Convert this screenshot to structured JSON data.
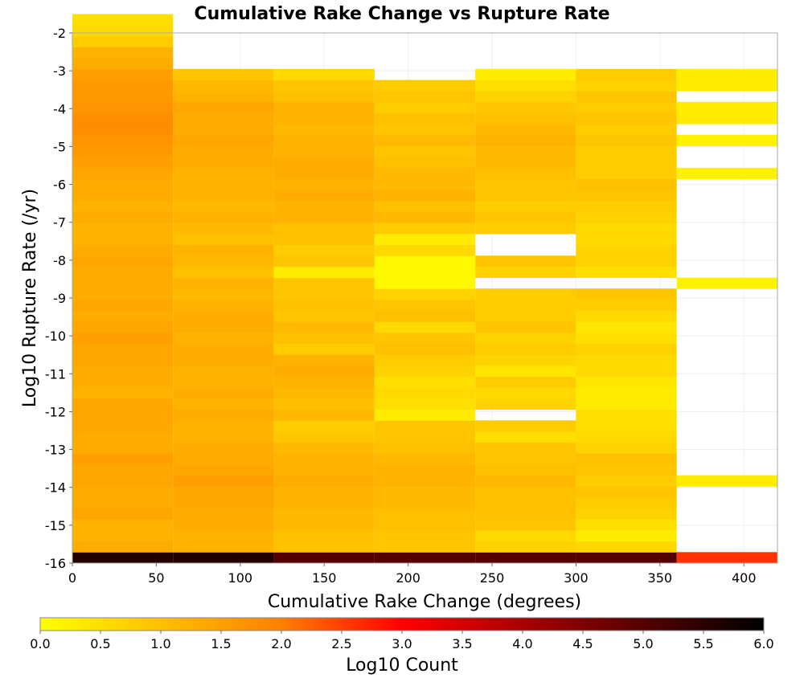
{
  "chart_data": {
    "type": "heatmap",
    "title": "Cumulative Rake Change vs Rupture Rate",
    "xlabel": "Cumulative Rake Change (degrees)",
    "ylabel": "Log10 Rupture Rate (/yr)",
    "xlim": [
      0,
      420
    ],
    "ylim": [
      -16,
      -2
    ],
    "x_ticks": [
      "0",
      "50",
      "100",
      "150",
      "200",
      "250",
      "300",
      "350",
      "400"
    ],
    "y_ticks": [
      "-2",
      "-3",
      "-4",
      "-5",
      "-6",
      "-7",
      "-8",
      "-9",
      "-10",
      "-11",
      "-12",
      "-13",
      "-14",
      "-15",
      "-16"
    ],
    "grid": true,
    "x_bin_edges": [
      0,
      60,
      120,
      180,
      240,
      300,
      360,
      420
    ],
    "y_bin_width": 0.29,
    "y_bin_start": -16,
    "z_label": "Log10 Count",
    "z_range": [
      0,
      6
    ],
    "colorbar": {
      "label": "Log10 Count",
      "ticks": [
        "0.0",
        "0.5",
        "1.0",
        "1.5",
        "2.0",
        "2.5",
        "3.0",
        "3.5",
        "4.0",
        "4.5",
        "5.0",
        "5.5",
        "6.0"
      ],
      "colors": [
        "#ffff00",
        "#ff8000",
        "#ff0000",
        "#000000"
      ],
      "placement": "bottom"
    },
    "columns": [
      {
        "x_start": 0,
        "x_end": 60,
        "values": [
          5.6,
          1.3,
          1.2,
          1.2,
          1.4,
          1.3,
          1.3,
          1.4,
          1.4,
          1.5,
          1.3,
          1.3,
          1.4,
          1.4,
          1.4,
          1.2,
          1.3,
          1.3,
          1.4,
          1.4,
          1.5,
          1.4,
          1.3,
          1.4,
          1.3,
          1.3,
          1.3,
          1.4,
          1.3,
          1.2,
          1.2,
          1.3,
          1.2,
          1.3,
          1.3,
          1.4,
          1.5,
          1.6,
          1.7,
          1.8,
          1.8,
          1.7,
          1.6,
          1.6,
          1.5,
          1.3,
          1.2,
          0.8,
          0.6,
          0.5,
          null
        ]
      },
      {
        "x_start": 60,
        "x_end": 120,
        "values": [
          5.6,
          1.2,
          1.2,
          1.3,
          1.3,
          1.4,
          1.4,
          1.5,
          1.4,
          1.3,
          1.3,
          1.2,
          1.2,
          1.3,
          1.2,
          1.3,
          1.2,
          1.2,
          1.3,
          1.3,
          1.2,
          1.3,
          1.3,
          1.2,
          1.1,
          1.2,
          1.0,
          1.1,
          1.2,
          1.0,
          1.1,
          1.2,
          1.1,
          1.2,
          1.2,
          1.2,
          1.3,
          1.3,
          1.4,
          1.3,
          1.3,
          1.4,
          1.2,
          1.1,
          0.9,
          null,
          null,
          null,
          null,
          null,
          null
        ]
      },
      {
        "x_start": 120,
        "x_end": 180,
        "values": [
          5.0,
          1.0,
          1.0,
          1.1,
          1.1,
          1.2,
          1.2,
          1.3,
          1.2,
          1.2,
          1.1,
          0.9,
          0.8,
          1.1,
          1.0,
          1.1,
          1.2,
          1.3,
          1.2,
          0.8,
          1.0,
          1.1,
          0.9,
          1.0,
          0.9,
          0.9,
          0.3,
          0.9,
          0.8,
          1.0,
          1.0,
          1.2,
          1.2,
          1.3,
          1.2,
          1.3,
          1.3,
          1.2,
          1.2,
          1.1,
          1.2,
          1.2,
          1.0,
          0.9,
          0.6,
          null,
          null,
          null,
          null,
          null,
          null
        ]
      },
      {
        "x_start": 180,
        "x_end": 240,
        "values": [
          5.0,
          0.9,
          0.9,
          1.0,
          1.0,
          1.1,
          1.1,
          1.2,
          1.2,
          1.1,
          1.0,
          0.9,
          0.9,
          0.3,
          0.5,
          0.6,
          0.5,
          0.7,
          0.8,
          1.0,
          0.9,
          0.6,
          1.0,
          0.9,
          0.7,
          0.1,
          0.1,
          0.1,
          0.6,
          0.3,
          0.8,
          1.1,
          1.0,
          1.2,
          1.1,
          1.1,
          1.0,
          0.9,
          1.1,
          0.9,
          1.0,
          0.8,
          0.9,
          0.8,
          null,
          null,
          null,
          null,
          null,
          null,
          null
        ]
      },
      {
        "x_start": 240,
        "x_end": 300,
        "values": [
          5.0,
          0.7,
          0.6,
          0.9,
          1.0,
          1.0,
          1.0,
          1.1,
          1.0,
          0.9,
          0.9,
          0.5,
          0.8,
          null,
          0.7,
          0.6,
          0.8,
          0.4,
          0.7,
          0.8,
          0.7,
          0.9,
          0.8,
          0.8,
          0.8,
          null,
          0.7,
          0.9,
          null,
          null,
          0.8,
          0.9,
          0.8,
          0.9,
          0.9,
          1.0,
          1.1,
          1.1,
          1.2,
          1.1,
          1.0,
          0.9,
          0.7,
          0.5,
          0.3,
          null,
          null,
          null,
          null,
          null,
          null
        ]
      },
      {
        "x_start": 300,
        "x_end": 360,
        "values": [
          5.0,
          0.6,
          0.3,
          0.5,
          0.7,
          0.8,
          0.9,
          0.8,
          0.9,
          1.0,
          0.7,
          0.6,
          0.5,
          0.5,
          0.3,
          0.3,
          0.4,
          0.6,
          0.6,
          0.7,
          0.5,
          0.4,
          0.6,
          0.8,
          0.9,
          null,
          0.5,
          0.7,
          0.7,
          0.6,
          0.6,
          0.7,
          0.8,
          0.9,
          1.0,
          0.8,
          0.8,
          0.8,
          0.9,
          0.8,
          0.9,
          0.8,
          0.9,
          0.7,
          0.8,
          null,
          null,
          null,
          null,
          null,
          null
        ]
      },
      {
        "x_start": 360,
        "x_end": 420,
        "values": [
          2.6,
          null,
          null,
          null,
          null,
          null,
          null,
          0.3,
          null,
          null,
          null,
          null,
          null,
          null,
          null,
          null,
          null,
          null,
          null,
          null,
          null,
          null,
          null,
          null,
          null,
          0.2,
          null,
          null,
          null,
          null,
          null,
          null,
          null,
          null,
          null,
          0.2,
          null,
          null,
          0.2,
          null,
          0.3,
          0.3,
          null,
          0.3,
          0.3,
          null,
          null,
          null,
          null,
          null,
          null
        ]
      }
    ]
  }
}
